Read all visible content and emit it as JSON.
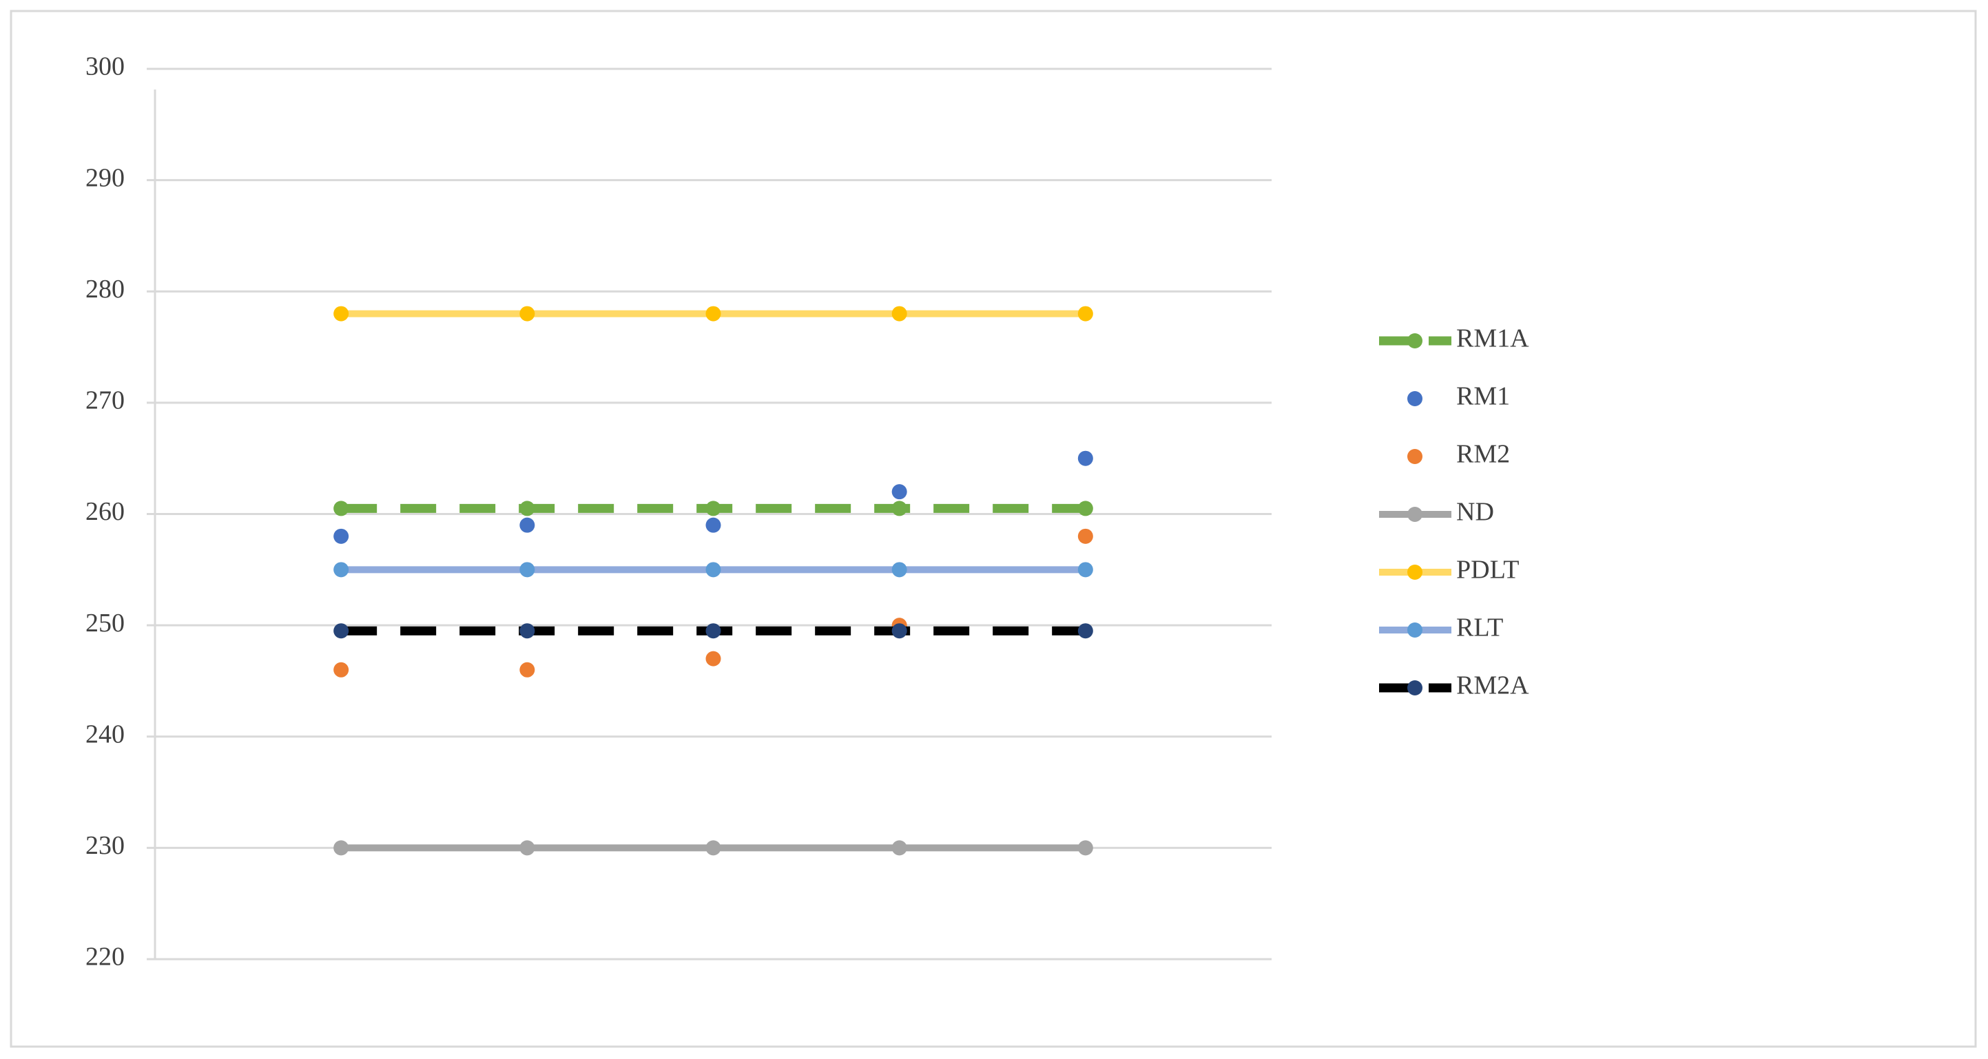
{
  "chart_data": {
    "type": "line",
    "categories": [
      null,
      null,
      null,
      null,
      null
    ],
    "ylim": [
      220,
      300
    ],
    "yticks": [
      220,
      230,
      240,
      250,
      260,
      270,
      280,
      290,
      300
    ],
    "grid": true,
    "legend": "right",
    "series": [
      {
        "name": "RM1A",
        "color": "#70ad47",
        "marker_color": "#70ad47",
        "line": "dashed",
        "values": [
          260.5,
          260.5,
          260.5,
          260.5,
          260.5
        ]
      },
      {
        "name": "RM1",
        "color": "#4472c4",
        "marker_color": "#4472c4",
        "line": "none",
        "values": [
          258,
          259,
          259,
          262,
          265
        ]
      },
      {
        "name": "RM2",
        "color": "#ed7d31",
        "marker_color": "#ed7d31",
        "line": "none",
        "values": [
          246,
          246,
          247,
          250,
          258
        ]
      },
      {
        "name": "ND",
        "color": "#a5a5a5",
        "marker_color": "#a5a5a5",
        "line": "solid",
        "values": [
          230,
          230,
          230,
          230,
          230
        ]
      },
      {
        "name": "PDLT",
        "color": "#ffd966",
        "marker_color": "#ffc000",
        "line": "solid",
        "values": [
          278,
          278,
          278,
          278,
          278
        ]
      },
      {
        "name": "RLT",
        "color": "#8faadc",
        "marker_color": "#5b9bd5",
        "line": "solid",
        "values": [
          255,
          255,
          255,
          255,
          255
        ]
      },
      {
        "name": "RM2A",
        "color": "#000000",
        "marker_color": "#264478",
        "line": "dashed",
        "values": [
          249.5,
          249.5,
          249.5,
          249.5,
          249.5
        ]
      }
    ]
  }
}
